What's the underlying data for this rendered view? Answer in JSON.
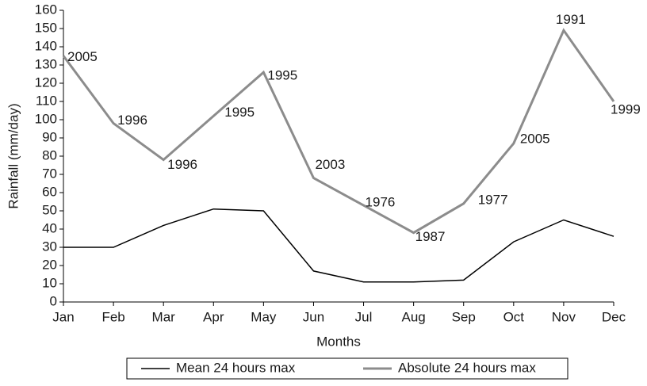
{
  "chart_data": {
    "type": "line",
    "x_label": "Months",
    "y_label": "Rainfall (mm/day)",
    "categories": [
      "Jan",
      "Feb",
      "Mar",
      "Apr",
      "May",
      "Jun",
      "Jul",
      "Aug",
      "Sep",
      "Oct",
      "Nov",
      "Dec"
    ],
    "series": [
      {
        "name": "Mean 24 hours max",
        "color": "#000000",
        "values": [
          30,
          30,
          42,
          51,
          50,
          17,
          11,
          11,
          12,
          33,
          45,
          36
        ]
      },
      {
        "name": "Absolute 24 hours max",
        "color": "#8c8c8c",
        "values": [
          135,
          98,
          78,
          102,
          126,
          68,
          53,
          38,
          54,
          87,
          149,
          110
        ],
        "point_labels": [
          "2005",
          "1996",
          "1996",
          "1995",
          "1995",
          "2003",
          "1976",
          "1987",
          "1977",
          "2005",
          "1991",
          "1999"
        ]
      }
    ],
    "ylim": [
      0,
      160
    ],
    "yticks": [
      0,
      10,
      20,
      30,
      40,
      50,
      60,
      70,
      80,
      90,
      100,
      110,
      120,
      130,
      140,
      150,
      160
    ],
    "grid": false,
    "legend": "bottom"
  }
}
